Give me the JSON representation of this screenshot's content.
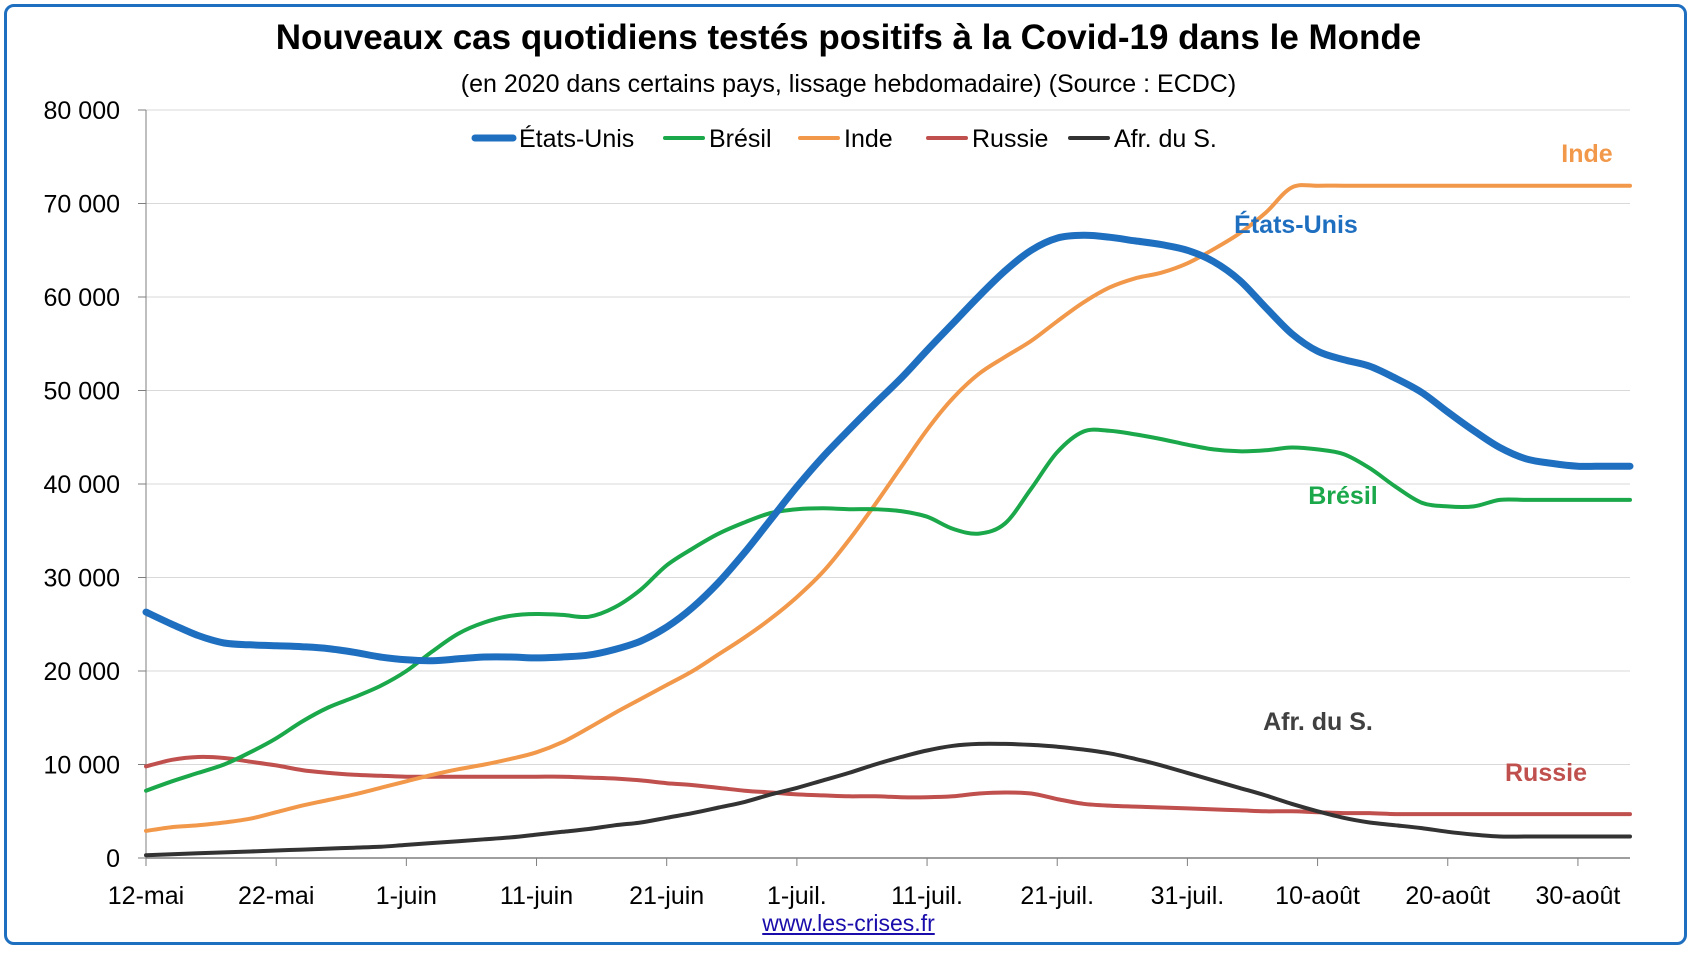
{
  "title": "Nouveaux cas quotidiens testés positifs à la Covid-19 dans le Monde",
  "subtitle": "(en 2020 dans certains pays, lissage hebdomadaire) (Source : ECDC)",
  "source_link": "www.les-crises.fr",
  "chart_data": {
    "type": "line",
    "title": "Nouveaux cas quotidiens testés positifs à la Covid-19 dans le Monde",
    "subtitle": "(en 2020 dans certains pays, lissage hebdomadaire) (Source : ECDC)",
    "x_tick_labels": [
      "12-mai",
      "22-mai",
      "1-juin",
      "11-juin",
      "21-juin",
      "1-juil.",
      "11-juil.",
      "21-juil.",
      "31-juil.",
      "10-août",
      "20-août",
      "30-août"
    ],
    "x_tick_days": [
      0,
      10,
      20,
      30,
      40,
      50,
      60,
      70,
      80,
      90,
      100,
      110
    ],
    "xlim_days": [
      0,
      114
    ],
    "ylim": [
      0,
      80000
    ],
    "y_ticks": [
      0,
      10000,
      20000,
      30000,
      40000,
      50000,
      60000,
      70000,
      80000
    ],
    "y_tick_labels": [
      "0",
      "10 000",
      "20 000",
      "30 000",
      "40 000",
      "50 000",
      "60 000",
      "70 000",
      "80 000"
    ],
    "grid": "horizontal",
    "legend_position": "top",
    "series": [
      {
        "name": "États-Unis",
        "label": "États-Unis",
        "color": "#1f6fc0",
        "width": 7,
        "x": [
          0,
          2,
          4,
          6,
          8,
          10,
          12,
          14,
          16,
          18,
          20,
          22,
          24,
          26,
          28,
          30,
          32,
          34,
          36,
          38,
          40,
          42,
          44,
          46,
          48,
          50,
          52,
          54,
          56,
          58,
          60,
          62,
          64,
          66,
          68,
          70,
          72,
          74,
          76,
          78,
          80,
          82,
          84,
          86,
          88,
          90,
          92,
          94,
          96,
          98,
          100,
          102,
          104,
          106,
          108,
          110,
          112,
          114
        ],
        "y": [
          26300,
          25000,
          23800,
          23000,
          22800,
          22700,
          22600,
          22400,
          22000,
          21500,
          21200,
          21100,
          21300,
          21500,
          21500,
          21400,
          21500,
          21700,
          22300,
          23200,
          24700,
          26800,
          29500,
          32700,
          36200,
          39700,
          42900,
          45800,
          48600,
          51300,
          54300,
          57200,
          60100,
          62800,
          65000,
          66300,
          66600,
          66400,
          66000,
          65600,
          65000,
          63800,
          61800,
          58900,
          56100,
          54200,
          53300,
          52600,
          51300,
          49800,
          47700,
          45700,
          43900,
          42700,
          42200,
          41900,
          41900,
          41900
        ]
      },
      {
        "name": "Brésil",
        "label": "Brésil",
        "color": "#1aa84b",
        "width": 4,
        "x": [
          0,
          2,
          4,
          6,
          8,
          10,
          12,
          14,
          16,
          18,
          20,
          22,
          24,
          26,
          28,
          30,
          32,
          34,
          36,
          38,
          40,
          42,
          44,
          46,
          48,
          50,
          52,
          54,
          56,
          58,
          60,
          62,
          64,
          66,
          68,
          70,
          72,
          74,
          76,
          78,
          80,
          82,
          84,
          86,
          88,
          90,
          92,
          94,
          96,
          98,
          100,
          102,
          104,
          106,
          108,
          110,
          112,
          114
        ],
        "y": [
          7200,
          8200,
          9100,
          10000,
          11300,
          12800,
          14600,
          16100,
          17200,
          18400,
          20000,
          22100,
          24000,
          25200,
          25900,
          26100,
          26000,
          25800,
          26800,
          28700,
          31300,
          33100,
          34700,
          35900,
          36900,
          37300,
          37400,
          37300,
          37300,
          37100,
          36500,
          35200,
          34700,
          35800,
          39500,
          43400,
          45600,
          45700,
          45300,
          44800,
          44200,
          43700,
          43500,
          43600,
          43900,
          43700,
          43200,
          41700,
          39700,
          38000,
          37600,
          37600,
          38300,
          38300,
          38300,
          38300,
          38300,
          38300
        ]
      },
      {
        "name": "Inde",
        "label": "Inde",
        "color": "#f2984a",
        "width": 4,
        "x": [
          0,
          2,
          4,
          6,
          8,
          10,
          12,
          14,
          16,
          18,
          20,
          22,
          24,
          26,
          28,
          30,
          32,
          34,
          36,
          38,
          40,
          42,
          44,
          46,
          48,
          50,
          52,
          54,
          56,
          58,
          60,
          62,
          64,
          66,
          68,
          70,
          72,
          74,
          76,
          78,
          80,
          82,
          84,
          86,
          88,
          90,
          92,
          94,
          96,
          98,
          100,
          102,
          104,
          106,
          108,
          110,
          112,
          114
        ],
        "y": [
          2900,
          3300,
          3500,
          3800,
          4200,
          4900,
          5600,
          6200,
          6800,
          7500,
          8200,
          8900,
          9500,
          10000,
          10600,
          11300,
          12400,
          13900,
          15500,
          17000,
          18500,
          20000,
          21800,
          23600,
          25600,
          27900,
          30600,
          34000,
          37800,
          41800,
          45800,
          49200,
          51800,
          53600,
          55300,
          57400,
          59400,
          61000,
          62000,
          62600,
          63600,
          65100,
          66800,
          69000,
          71700,
          71900,
          71900,
          71900,
          71900,
          71900,
          71900,
          71900,
          71900,
          71900,
          71900,
          71900,
          71900,
          71900
        ]
      },
      {
        "name": "Russie",
        "label": "Russie",
        "color": "#c0504d",
        "width": 4,
        "x": [
          0,
          2,
          4,
          6,
          8,
          10,
          12,
          14,
          16,
          18,
          20,
          22,
          24,
          26,
          28,
          30,
          32,
          34,
          36,
          38,
          40,
          42,
          44,
          46,
          48,
          50,
          52,
          54,
          56,
          58,
          60,
          62,
          64,
          66,
          68,
          70,
          72,
          74,
          76,
          78,
          80,
          82,
          84,
          86,
          88,
          90,
          92,
          94,
          96,
          98,
          100,
          102,
          104,
          106,
          108,
          110,
          112,
          114
        ],
        "y": [
          9800,
          10500,
          10800,
          10700,
          10300,
          9900,
          9400,
          9100,
          8900,
          8800,
          8700,
          8700,
          8700,
          8700,
          8700,
          8700,
          8700,
          8600,
          8500,
          8300,
          8000,
          7800,
          7500,
          7200,
          7000,
          6800,
          6700,
          6600,
          6600,
          6500,
          6500,
          6600,
          6900,
          7000,
          6900,
          6300,
          5800,
          5600,
          5500,
          5400,
          5300,
          5200,
          5100,
          5000,
          5000,
          4900,
          4800,
          4800,
          4700,
          4700,
          4700,
          4700,
          4700,
          4700,
          4700,
          4700,
          4700,
          4700
        ]
      },
      {
        "name": "Afr. du S.",
        "label": "Afr. du S.",
        "color": "#333333",
        "width": 4,
        "x": [
          0,
          2,
          4,
          6,
          8,
          10,
          12,
          14,
          16,
          18,
          20,
          22,
          24,
          26,
          28,
          30,
          32,
          34,
          36,
          38,
          40,
          42,
          44,
          46,
          48,
          50,
          52,
          54,
          56,
          58,
          60,
          62,
          64,
          66,
          68,
          70,
          72,
          74,
          76,
          78,
          80,
          82,
          84,
          86,
          88,
          90,
          92,
          94,
          96,
          98,
          100,
          102,
          104,
          106,
          108,
          110,
          112,
          114
        ],
        "y": [
          300,
          400,
          500,
          600,
          700,
          800,
          900,
          1000,
          1100,
          1200,
          1400,
          1600,
          1800,
          2000,
          2200,
          2500,
          2800,
          3100,
          3500,
          3800,
          4300,
          4800,
          5400,
          6000,
          6800,
          7500,
          8300,
          9100,
          10000,
          10800,
          11500,
          12000,
          12200,
          12200,
          12100,
          11900,
          11600,
          11200,
          10600,
          9900,
          9100,
          8300,
          7500,
          6700,
          5800,
          5000,
          4300,
          3800,
          3500,
          3200,
          2800,
          2500,
          2300,
          2300,
          2300,
          2300,
          2300,
          2300
        ]
      }
    ]
  }
}
